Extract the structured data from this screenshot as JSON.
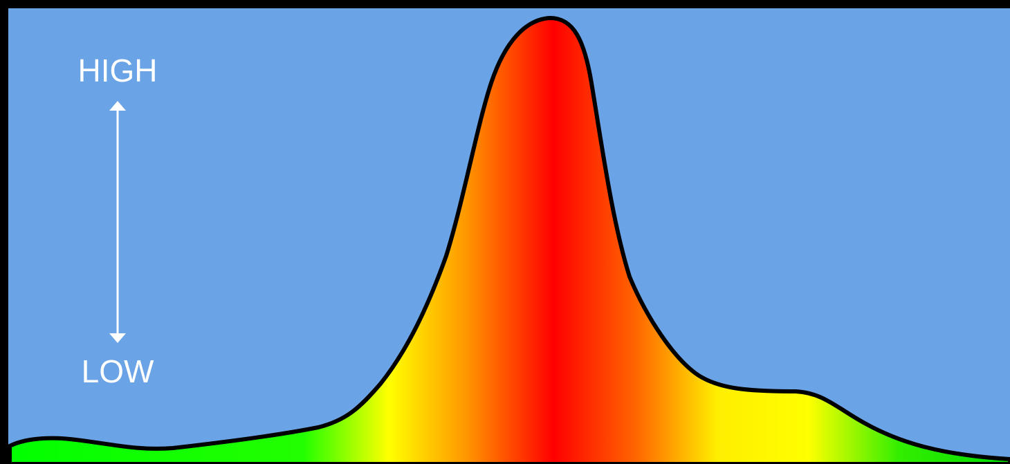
{
  "labels": {
    "high": "HIGH",
    "low": "LOW"
  }
}
